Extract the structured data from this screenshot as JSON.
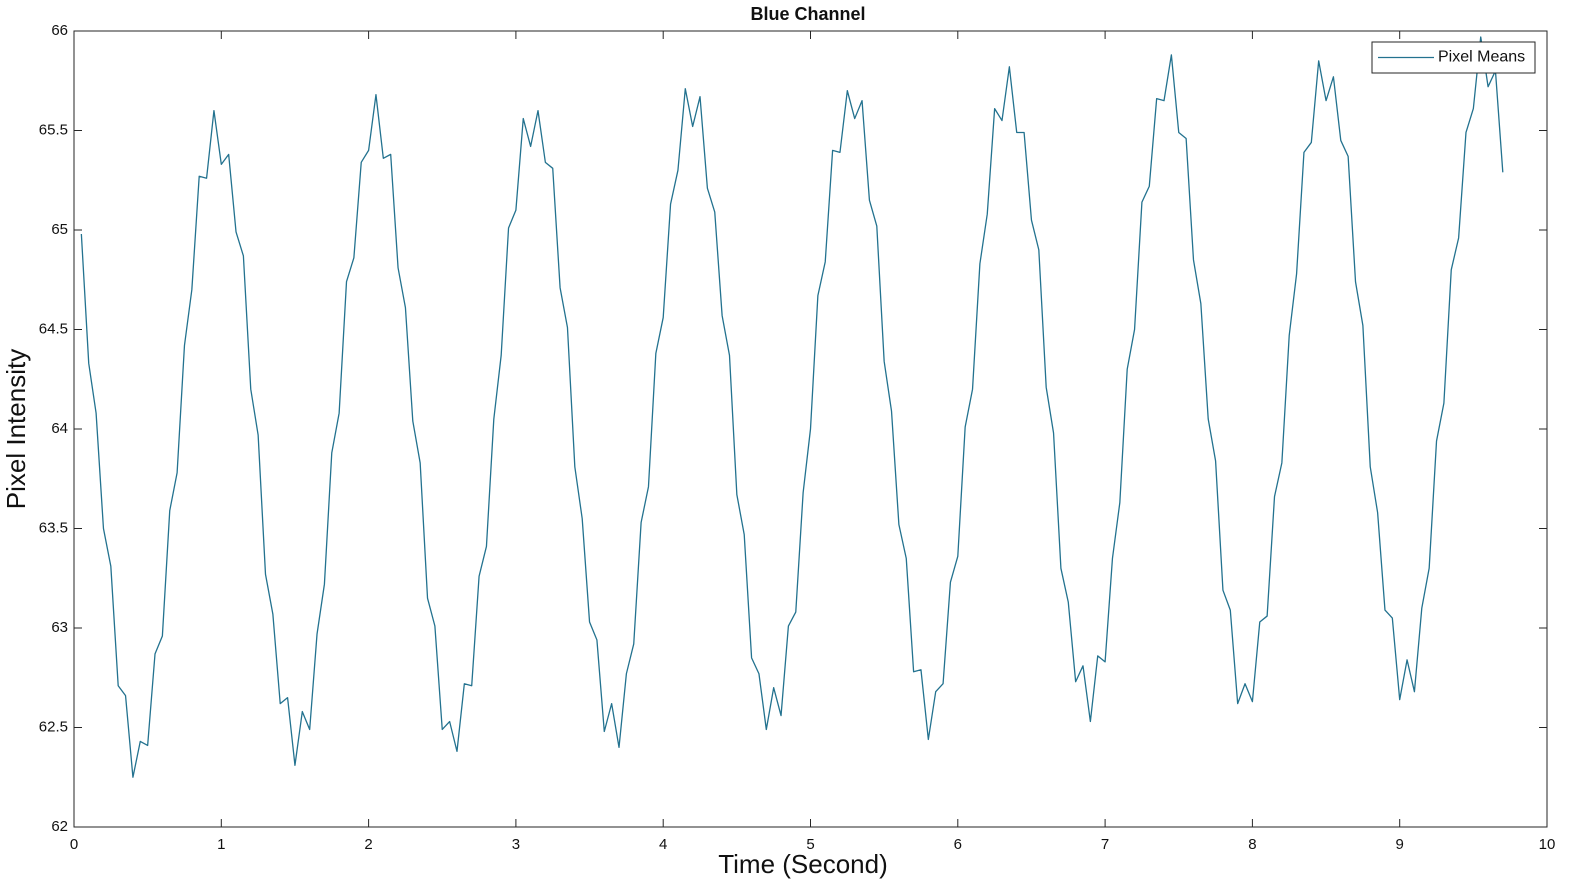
{
  "chart_data": {
    "type": "line",
    "title": "Blue Channel",
    "xlabel": "Time (Second)",
    "ylabel": "Pixel Intensity",
    "x": [
      0.05,
      0.1,
      0.15,
      0.2,
      0.25,
      0.3,
      0.35,
      0.4,
      0.45,
      0.5,
      0.55,
      0.6,
      0.65,
      0.7,
      0.75,
      0.8,
      0.85,
      0.9,
      0.95,
      1.0,
      1.05,
      1.1,
      1.15,
      1.2,
      1.25,
      1.3,
      1.35,
      1.4,
      1.45,
      1.5,
      1.55,
      1.6,
      1.65,
      1.7,
      1.75,
      1.8,
      1.85,
      1.9,
      1.95,
      2.0,
      2.05,
      2.1,
      2.15,
      2.2,
      2.25,
      2.3,
      2.35,
      2.4,
      2.45,
      2.5,
      2.55,
      2.6,
      2.65,
      2.7,
      2.75,
      2.8,
      2.85,
      2.9,
      2.95,
      3.0,
      3.05,
      3.1,
      3.15,
      3.2,
      3.25,
      3.3,
      3.35,
      3.4,
      3.45,
      3.5,
      3.55,
      3.6,
      3.65,
      3.7,
      3.75,
      3.8,
      3.85,
      3.9,
      3.95,
      4.0,
      4.05,
      4.1,
      4.15,
      4.2,
      4.25,
      4.3,
      4.35,
      4.4,
      4.45,
      4.5,
      4.55,
      4.6,
      4.65,
      4.7,
      4.75,
      4.8,
      4.85,
      4.9,
      4.95,
      5.0,
      5.05,
      5.1,
      5.15,
      5.2,
      5.25,
      5.3,
      5.35,
      5.4,
      5.45,
      5.5,
      5.55,
      5.6,
      5.65,
      5.7,
      5.75,
      5.8,
      5.85,
      5.9,
      5.95,
      6.0,
      6.05,
      6.1,
      6.15,
      6.2,
      6.25,
      6.3,
      6.35,
      6.4,
      6.45,
      6.5,
      6.55,
      6.6,
      6.65,
      6.7,
      6.75,
      6.8,
      6.85,
      6.9,
      6.95,
      7.0,
      7.05,
      7.1,
      7.15,
      7.2,
      7.25,
      7.3,
      7.35,
      7.4,
      7.45,
      7.5,
      7.55,
      7.6,
      7.65,
      7.7,
      7.75,
      7.8,
      7.85,
      7.9,
      7.95,
      8.0,
      8.05,
      8.1,
      8.15,
      8.2,
      8.25,
      8.3,
      8.35,
      8.4,
      8.45,
      8.5,
      8.55,
      8.6,
      8.65,
      8.7,
      8.75,
      8.8,
      8.85,
      8.9,
      8.95,
      9.0,
      9.05,
      9.1,
      9.15,
      9.2,
      9.25,
      9.3,
      9.35,
      9.4,
      9.45,
      9.5,
      9.55,
      9.6,
      9.65,
      9.7
    ],
    "series": [
      {
        "name": "Pixel Means",
        "color": "#23728f",
        "values": [
          64.98,
          64.33,
          64.08,
          63.5,
          63.31,
          62.71,
          62.66,
          62.25,
          62.43,
          62.41,
          62.87,
          62.96,
          63.59,
          63.78,
          64.42,
          64.7,
          65.27,
          65.26,
          65.6,
          65.33,
          65.38,
          64.99,
          64.87,
          64.2,
          63.97,
          63.27,
          63.07,
          62.62,
          62.65,
          62.31,
          62.58,
          62.49,
          62.97,
          63.22,
          63.88,
          64.08,
          64.74,
          64.86,
          65.34,
          65.4,
          65.68,
          65.36,
          65.38,
          64.81,
          64.61,
          64.04,
          63.83,
          63.15,
          63.01,
          62.49,
          62.53,
          62.38,
          62.72,
          62.71,
          63.26,
          63.41,
          64.05,
          64.37,
          65.01,
          65.1,
          65.56,
          65.42,
          65.6,
          65.34,
          65.31,
          64.71,
          64.51,
          63.81,
          63.55,
          63.03,
          62.94,
          62.48,
          62.62,
          62.4,
          62.77,
          62.92,
          63.53,
          63.71,
          64.38,
          64.56,
          65.13,
          65.3,
          65.71,
          65.52,
          65.67,
          65.21,
          65.09,
          64.57,
          64.37,
          63.67,
          63.47,
          62.85,
          62.77,
          62.49,
          62.7,
          62.56,
          63.01,
          63.08,
          63.68,
          64.0,
          64.67,
          64.84,
          65.4,
          65.39,
          65.7,
          65.56,
          65.65,
          65.15,
          65.02,
          64.34,
          64.09,
          63.52,
          63.35,
          62.78,
          62.79,
          62.44,
          62.68,
          62.72,
          63.23,
          63.36,
          64.01,
          64.2,
          64.83,
          65.08,
          65.61,
          65.55,
          65.82,
          65.49,
          65.49,
          65.05,
          64.9,
          64.21,
          63.98,
          63.3,
          63.13,
          62.73,
          62.81,
          62.53,
          62.86,
          62.83,
          63.35,
          63.63,
          64.3,
          64.5,
          65.14,
          65.22,
          65.66,
          65.65,
          65.88,
          65.49,
          65.46,
          64.85,
          64.63,
          64.05,
          63.84,
          63.19,
          63.09,
          62.62,
          62.72,
          62.63,
          63.03,
          63.06,
          63.66,
          63.83,
          64.47,
          64.78,
          65.39,
          65.44,
          65.85,
          65.65,
          65.77,
          65.45,
          65.37,
          64.74,
          64.52,
          63.81,
          63.58,
          63.09,
          63.05,
          62.64,
          62.84,
          62.68,
          63.1,
          63.3,
          63.94,
          64.13,
          64.8,
          64.96,
          65.49,
          65.61,
          65.97,
          65.72,
          65.8,
          65.29
        ]
      }
    ],
    "xlim": [
      0,
      10
    ],
    "xticks": [
      0,
      1,
      2,
      3,
      4,
      5,
      6,
      7,
      8,
      9,
      10
    ],
    "ylim": [
      62,
      66
    ],
    "yticks": [
      62,
      62.5,
      63,
      63.5,
      64,
      64.5,
      65,
      65.5,
      66
    ],
    "grid": false,
    "legend": "upper right"
  }
}
